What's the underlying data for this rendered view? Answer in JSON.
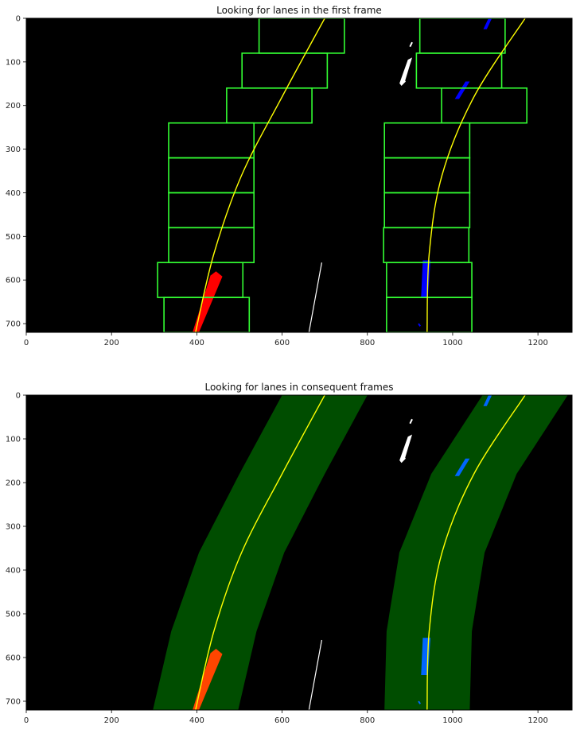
{
  "chart_data": [
    {
      "type": "image",
      "title": "Looking for lanes in the first frame",
      "xlim": [
        0,
        1280
      ],
      "ylim": [
        720,
        0
      ],
      "xticks": [
        0,
        200,
        400,
        600,
        800,
        1000,
        1200
      ],
      "yticks": [
        0,
        100,
        200,
        300,
        400,
        500,
        600,
        700
      ],
      "background": "#000000",
      "fit_color": "#ffff00",
      "box_color": "#33ff33",
      "left_pixel_color": "#ff0000",
      "right_pixel_color": "#0000ff",
      "other_pixel_color": "#ffffff",
      "left_fit": [
        [
          700,
          0
        ],
        [
          600,
          180
        ],
        [
          505,
          360
        ],
        [
          440,
          540
        ],
        [
          397,
          720
        ]
      ],
      "right_fit": [
        [
          1170,
          0
        ],
        [
          1050,
          180
        ],
        [
          975,
          360
        ],
        [
          945,
          540
        ],
        [
          940,
          720
        ]
      ],
      "left_boxes": [
        {
          "x": [
            546,
            746
          ],
          "y": [
            0,
            80
          ]
        },
        {
          "x": [
            506,
            706
          ],
          "y": [
            80,
            160
          ]
        },
        {
          "x": [
            470,
            670
          ],
          "y": [
            160,
            240
          ]
        },
        {
          "x": [
            334,
            534
          ],
          "y": [
            240,
            320
          ]
        },
        {
          "x": [
            334,
            534
          ],
          "y": [
            320,
            400
          ]
        },
        {
          "x": [
            334,
            534
          ],
          "y": [
            400,
            480
          ]
        },
        {
          "x": [
            334,
            534
          ],
          "y": [
            480,
            560
          ]
        },
        {
          "x": [
            308,
            508
          ],
          "y": [
            560,
            640
          ]
        },
        {
          "x": [
            323,
            523
          ],
          "y": [
            640,
            720
          ]
        }
      ],
      "right_boxes": [
        {
          "x": [
            923,
            1123
          ],
          "y": [
            0,
            80
          ]
        },
        {
          "x": [
            915,
            1115
          ],
          "y": [
            80,
            160
          ]
        },
        {
          "x": [
            974,
            1174
          ],
          "y": [
            160,
            240
          ]
        },
        {
          "x": [
            840,
            1040
          ],
          "y": [
            240,
            320
          ]
        },
        {
          "x": [
            840,
            1040
          ],
          "y": [
            320,
            400
          ]
        },
        {
          "x": [
            840,
            1040
          ],
          "y": [
            400,
            480
          ]
        },
        {
          "x": [
            838,
            1038
          ],
          "y": [
            480,
            560
          ]
        },
        {
          "x": [
            845,
            1045
          ],
          "y": [
            560,
            640
          ]
        },
        {
          "x": [
            845,
            1045
          ],
          "y": [
            640,
            720
          ]
        }
      ]
    },
    {
      "type": "image",
      "title": "Looking for lanes in consequent frames",
      "xlim": [
        0,
        1280
      ],
      "ylim": [
        720,
        0
      ],
      "xticks": [
        0,
        200,
        400,
        600,
        800,
        1000,
        1200
      ],
      "yticks": [
        0,
        100,
        200,
        300,
        400,
        500,
        600,
        700
      ],
      "background": "#000000",
      "fit_color": "#ffff00",
      "search_band_color": "#004d00",
      "left_pixel_color": "#ff4500",
      "right_pixel_color": "#0066ff",
      "other_pixel_color": "#ffffff",
      "search_margin": 100,
      "left_fit": [
        [
          700,
          0
        ],
        [
          600,
          180
        ],
        [
          505,
          360
        ],
        [
          440,
          540
        ],
        [
          397,
          720
        ]
      ],
      "right_fit": [
        [
          1170,
          0
        ],
        [
          1050,
          180
        ],
        [
          975,
          360
        ],
        [
          945,
          540
        ],
        [
          940,
          720
        ]
      ]
    }
  ]
}
